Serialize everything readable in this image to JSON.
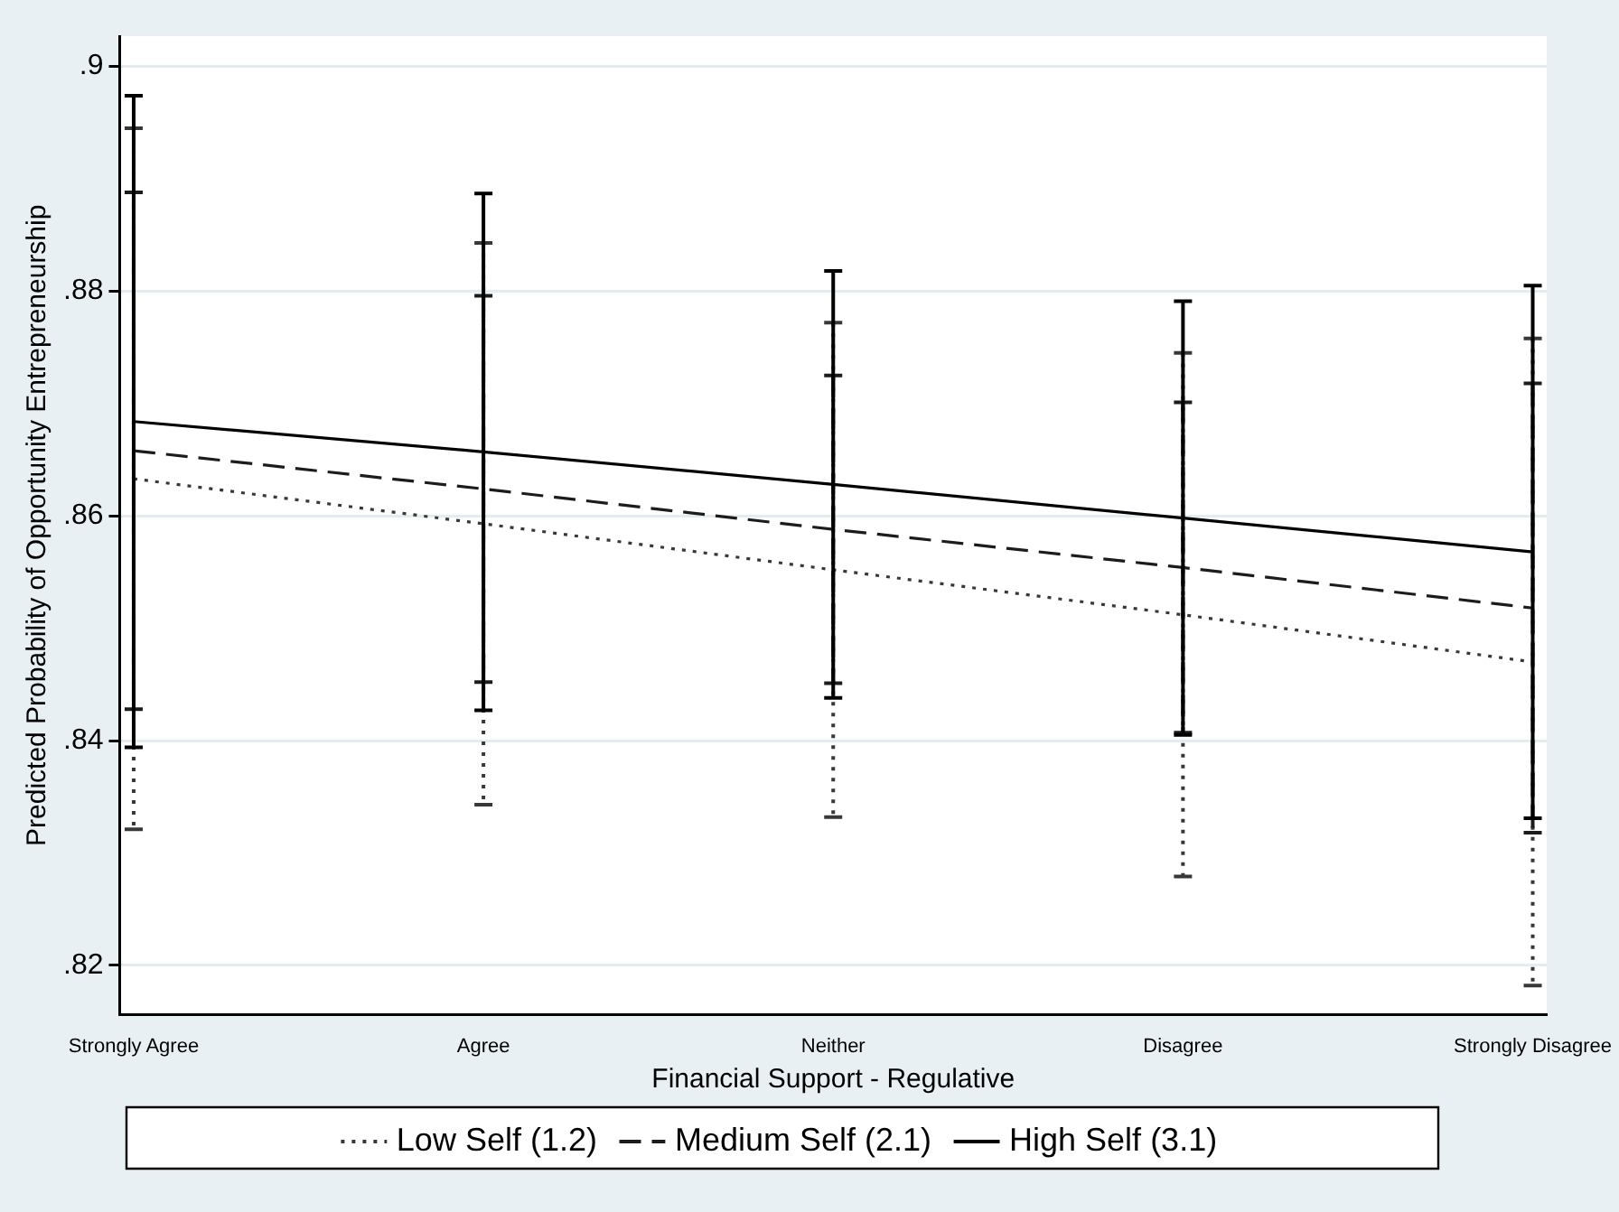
{
  "chart_data": {
    "type": "line",
    "xlabel": "Financial Support - Regulative",
    "ylabel": "Predicted Probability of Opportunity Entrepreneurship",
    "categories": [
      "Strongly Agree",
      "Agree",
      "Neither",
      "Disagree",
      "Strongly Disagree"
    ],
    "series": [
      {
        "name": "Low Self (1.2)",
        "color": "#383838",
        "line_style": "dotted",
        "values": [
          0.8633,
          0.8593,
          0.8552,
          0.8512,
          0.847
        ],
        "errors": [
          0.0312,
          0.025,
          0.022,
          0.0233,
          0.0288
        ]
      },
      {
        "name": "Medium Self (2.1)",
        "color": "#1c1c1c",
        "line_style": "dashed",
        "values": [
          0.8658,
          0.8624,
          0.8588,
          0.8554,
          0.8518
        ],
        "errors": [
          0.023,
          0.0172,
          0.0137,
          0.0147,
          0.02
        ]
      },
      {
        "name": "High Self (3.1)",
        "color": "#000000",
        "line_style": "solid",
        "values": [
          0.8684,
          0.8657,
          0.8628,
          0.8598,
          0.8568
        ],
        "errors": [
          0.029,
          0.023,
          0.019,
          0.0193,
          0.0237
        ]
      }
    ],
    "ylim": [
      0.8156,
      0.9027
    ],
    "yticks": [
      {
        "value": 0.82,
        "label": ".82"
      },
      {
        "value": 0.84,
        "label": ".84"
      },
      {
        "value": 0.86,
        "label": ".86"
      },
      {
        "value": 0.88,
        "label": ".88"
      },
      {
        "value": 0.9,
        "label": ".9"
      }
    ],
    "grid": "y",
    "legend": "bottom",
    "marker": "none"
  }
}
